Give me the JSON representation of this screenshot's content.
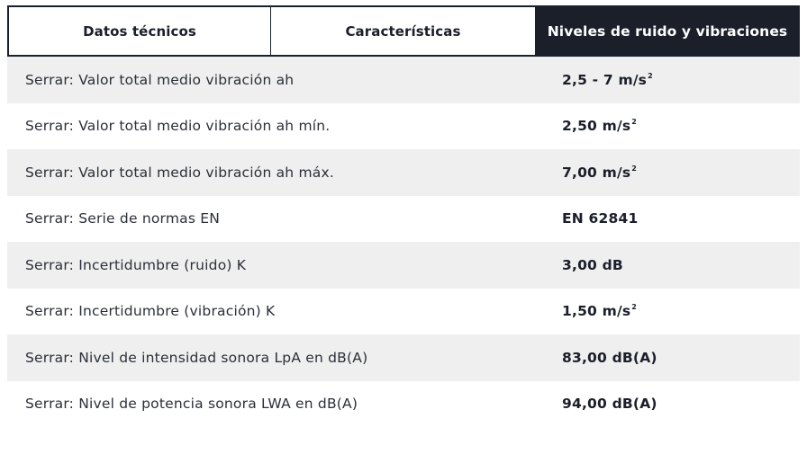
{
  "tabs": [
    {
      "label": "Datos técnicos",
      "active": false
    },
    {
      "label": "Características",
      "active": false
    },
    {
      "label": "Niveles de ruido y vibraciones",
      "active": true
    }
  ],
  "colors": {
    "active_tab_bg": "#1b1f2a",
    "active_tab_text": "#ffffff",
    "row_alt_bg": "#efefef",
    "text": "#1b1f2a"
  },
  "rows": [
    {
      "label": "Serrar: Valor total medio vibración ah",
      "value": "2,5 - 7 m/s",
      "sup": "2"
    },
    {
      "label": "Serrar: Valor total medio vibración ah mín.",
      "value": "2,50 m/s",
      "sup": "2"
    },
    {
      "label": "Serrar: Valor total medio vibración ah máx.",
      "value": "7,00 m/s",
      "sup": "2"
    },
    {
      "label": "Serrar: Serie de normas EN",
      "value": "EN 62841",
      "sup": ""
    },
    {
      "label": "Serrar: Incertidumbre (ruido) K",
      "value": "3,00 dB",
      "sup": ""
    },
    {
      "label": "Serrar: Incertidumbre (vibración) K",
      "value": "1,50 m/s",
      "sup": "2"
    },
    {
      "label": "Serrar: Nivel de intensidad sonora LpA en dB(A)",
      "value": "83,00 dB(A)",
      "sup": ""
    },
    {
      "label": "Serrar: Nivel de potencia sonora LWA en dB(A)",
      "value": "94,00 dB(A)",
      "sup": ""
    }
  ]
}
